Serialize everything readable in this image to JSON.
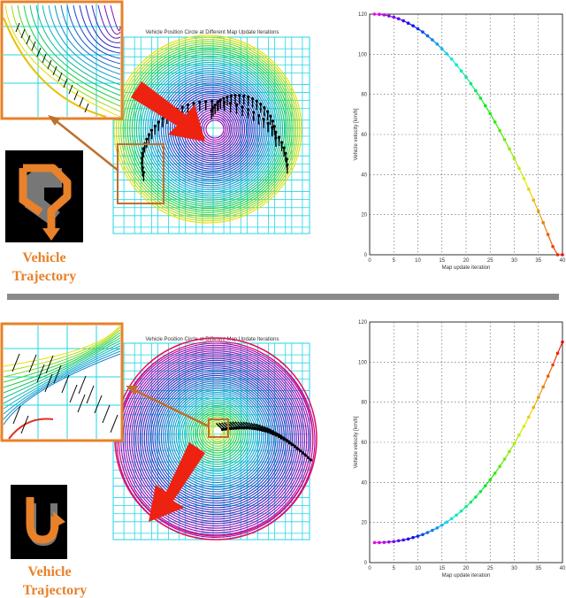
{
  "figure": {
    "top": {
      "panel_title": "Vehicle Position Circle at Different Map Update Iterations",
      "trajectory_label_line1": "Vehicle",
      "trajectory_label_line2": "Trajectory",
      "trend": "decreasing"
    },
    "bottom": {
      "panel_title": "Vehicle Position Circle at Different Map Update Iterations",
      "trajectory_label_line1": "Vehicle",
      "trajectory_label_line2": "Trajectory",
      "trend": "increasing"
    },
    "colors": {
      "accent_orange": "#e8812a",
      "arrow_red": "#ee2211",
      "grid_cyan": "#22d6e6",
      "divider_gray": "#8a8a8a"
    }
  },
  "chart_data": [
    {
      "type": "line",
      "title": "",
      "xlabel": "Map update iteration",
      "ylabel": "Vehicle velocity [km/h]",
      "xlim": [
        0,
        40
      ],
      "ylim": [
        0,
        120
      ],
      "xticks": [
        0,
        5,
        10,
        15,
        20,
        25,
        30,
        35,
        40
      ],
      "yticks": [
        0,
        20,
        40,
        60,
        80,
        100,
        120
      ],
      "grid": true,
      "x": [
        1,
        2,
        3,
        4,
        5,
        6,
        7,
        8,
        9,
        10,
        11,
        12,
        13,
        14,
        15,
        16,
        17,
        18,
        19,
        20,
        21,
        22,
        23,
        24,
        25,
        26,
        27,
        28,
        29,
        30,
        31,
        32,
        33,
        34,
        35,
        36,
        37,
        38,
        39,
        40
      ],
      "values": [
        120.0,
        119.9,
        119.6,
        119.1,
        118.5,
        117.7,
        116.7,
        115.5,
        114.2,
        112.7,
        111.1,
        109.2,
        107.2,
        105.1,
        102.7,
        100.2,
        97.6,
        94.7,
        91.7,
        88.6,
        85.3,
        81.8,
        78.1,
        74.3,
        70.4,
        66.2,
        61.9,
        57.4,
        52.8,
        48.0,
        43.1,
        38.0,
        32.7,
        27.3,
        21.7,
        16.0,
        10.1,
        4.1,
        -2.1,
        -8.4
      ]
    },
    {
      "type": "line",
      "title": "",
      "xlabel": "Map update iteration",
      "ylabel": "Vehicle velocity [km/h]",
      "xlim": [
        0,
        40
      ],
      "ylim": [
        0,
        120
      ],
      "xticks": [
        0,
        5,
        10,
        15,
        20,
        25,
        30,
        35,
        40
      ],
      "yticks": [
        0,
        20,
        40,
        60,
        80,
        100,
        120
      ],
      "grid": true,
      "x": [
        1,
        2,
        3,
        4,
        5,
        6,
        7,
        8,
        9,
        10,
        11,
        12,
        13,
        14,
        15,
        16,
        17,
        18,
        19,
        20,
        21,
        22,
        23,
        24,
        25,
        26,
        27,
        28,
        29,
        30,
        31,
        32,
        33,
        34,
        35,
        36,
        37,
        38,
        39,
        40
      ],
      "values": [
        10.0,
        10.0,
        10.1,
        10.3,
        10.5,
        10.9,
        11.3,
        11.8,
        12.5,
        13.2,
        14.0,
        15.0,
        16.1,
        17.3,
        18.7,
        20.2,
        21.9,
        23.7,
        25.7,
        27.9,
        30.2,
        32.7,
        35.4,
        38.3,
        41.3,
        44.6,
        48.0,
        51.6,
        55.4,
        59.4,
        63.6,
        68.0,
        72.6,
        77.4,
        82.4,
        87.6,
        93.0,
        98.6,
        104.4,
        110.0
      ]
    }
  ]
}
